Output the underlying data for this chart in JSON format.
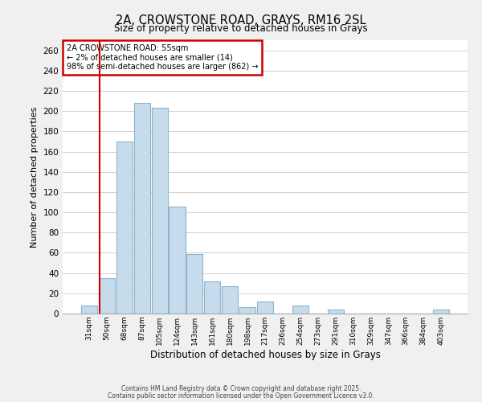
{
  "title": "2A, CROWSTONE ROAD, GRAYS, RM16 2SL",
  "subtitle": "Size of property relative to detached houses in Grays",
  "xlabel": "Distribution of detached houses by size in Grays",
  "ylabel": "Number of detached properties",
  "bar_labels": [
    "31sqm",
    "50sqm",
    "68sqm",
    "87sqm",
    "105sqm",
    "124sqm",
    "143sqm",
    "161sqm",
    "180sqm",
    "198sqm",
    "217sqm",
    "236sqm",
    "254sqm",
    "273sqm",
    "291sqm",
    "310sqm",
    "329sqm",
    "347sqm",
    "366sqm",
    "384sqm",
    "403sqm"
  ],
  "bar_values": [
    8,
    35,
    170,
    208,
    203,
    106,
    59,
    32,
    27,
    6,
    12,
    0,
    8,
    0,
    4,
    0,
    0,
    0,
    0,
    0,
    4
  ],
  "bar_color": "#c6dcec",
  "bar_edge_color": "#8ab4cd",
  "ylim": [
    0,
    270
  ],
  "yticks": [
    0,
    20,
    40,
    60,
    80,
    100,
    120,
    140,
    160,
    180,
    200,
    220,
    240,
    260
  ],
  "vline_x_index": 1,
  "vline_color": "#cc0000",
  "annotation_title": "2A CROWSTONE ROAD: 55sqm",
  "annotation_line1": "← 2% of detached houses are smaller (14)",
  "annotation_line2": "98% of semi-detached houses are larger (862) →",
  "annotation_box_color": "#ffffff",
  "annotation_border_color": "#cc0000",
  "footer1": "Contains HM Land Registry data © Crown copyright and database right 2025.",
  "footer2": "Contains public sector information licensed under the Open Government Licence v3.0.",
  "background_color": "#f0f0f0",
  "plot_background": "#ffffff",
  "grid_color": "#d0d0d0"
}
